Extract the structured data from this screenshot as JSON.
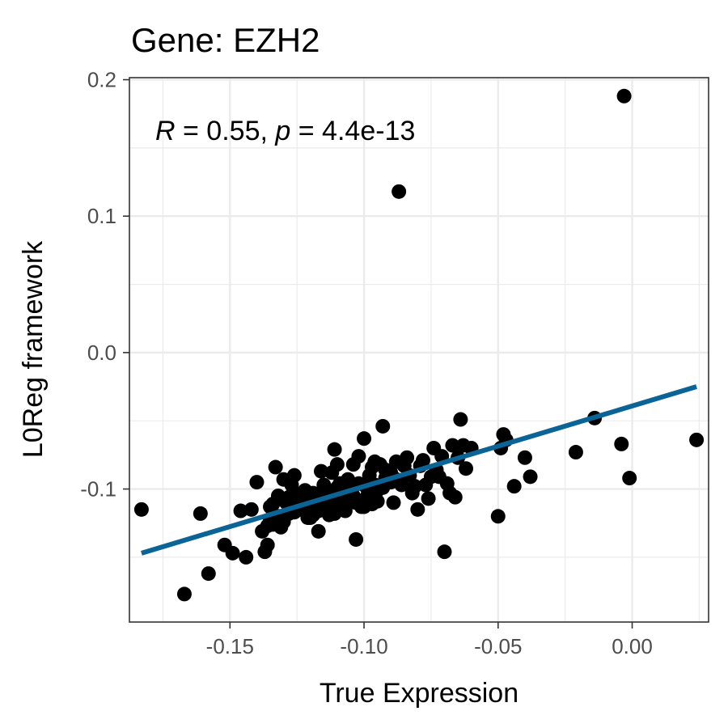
{
  "chart_data": {
    "type": "scatter",
    "title": "Gene: EZH2",
    "xlabel": "True Expression",
    "ylabel": "L0Reg framework",
    "annotation": {
      "r_symbol": "R",
      "r_text": " = 0.55, ",
      "p_symbol": "p",
      "p_text": " = 4.4e-13"
    },
    "xlim": [
      -0.1875,
      0.0285
    ],
    "ylim": [
      -0.1975,
      0.2015
    ],
    "x_ticks": [
      -0.15,
      -0.1,
      -0.05,
      0.0
    ],
    "x_tick_labels": [
      "-0.15",
      "-0.10",
      "-0.05",
      "0.00"
    ],
    "y_ticks": [
      -0.1,
      0.0,
      0.1,
      0.2
    ],
    "y_tick_labels": [
      "-0.1",
      "0.0",
      "0.1",
      "0.2"
    ],
    "grid": true,
    "regression_line": {
      "color": "#0a6496",
      "x": [
        -0.183,
        0.024
      ],
      "y": [
        -0.147,
        -0.025
      ]
    },
    "point_color": "#000000",
    "series": [
      {
        "x": [
          -0.183,
          -0.167,
          -0.161,
          -0.158,
          -0.152,
          -0.149,
          -0.146,
          -0.144,
          -0.142,
          -0.14,
          -0.138,
          -0.137,
          -0.136,
          -0.135,
          -0.134,
          -0.133,
          -0.132,
          -0.131,
          -0.13,
          -0.129,
          -0.128,
          -0.127,
          -0.126,
          -0.125,
          -0.124,
          -0.123,
          -0.122,
          -0.121,
          -0.12,
          -0.119,
          -0.118,
          -0.117,
          -0.116,
          -0.115,
          -0.114,
          -0.113,
          -0.112,
          -0.111,
          -0.11,
          -0.109,
          -0.108,
          -0.107,
          -0.106,
          -0.105,
          -0.104,
          -0.103,
          -0.102,
          -0.101,
          -0.1,
          -0.099,
          -0.098,
          -0.097,
          -0.096,
          -0.095,
          -0.094,
          -0.093,
          -0.092,
          -0.091,
          -0.09,
          -0.089,
          -0.088,
          -0.087,
          -0.086,
          -0.085,
          -0.084,
          -0.083,
          -0.082,
          -0.081,
          -0.08,
          -0.079,
          -0.078,
          -0.077,
          -0.076,
          -0.075,
          -0.074,
          -0.073,
          -0.072,
          -0.071,
          -0.07,
          -0.069,
          -0.068,
          -0.067,
          -0.066,
          -0.065,
          -0.064,
          -0.063,
          -0.062,
          -0.06,
          -0.05,
          -0.049,
          -0.048,
          -0.047,
          -0.044,
          -0.04,
          -0.038,
          -0.021,
          -0.014,
          -0.004,
          -0.003,
          -0.001,
          0.024,
          -0.088,
          -0.097,
          -0.1,
          -0.102,
          -0.105,
          -0.108,
          -0.11,
          -0.112,
          -0.114,
          -0.118,
          -0.12,
          -0.122,
          -0.124,
          -0.126,
          -0.128,
          -0.13,
          -0.132,
          -0.134,
          -0.136,
          -0.09,
          -0.093,
          -0.095,
          -0.099,
          -0.103,
          -0.107,
          -0.111,
          -0.115,
          -0.119,
          -0.123,
          -0.127,
          -0.131,
          -0.135,
          -0.092,
          -0.096,
          -0.104,
          -0.109,
          -0.113,
          -0.117,
          -0.121
        ],
        "y": [
          -0.115,
          -0.177,
          -0.118,
          -0.162,
          -0.141,
          -0.147,
          -0.116,
          -0.15,
          -0.115,
          -0.095,
          -0.131,
          -0.146,
          -0.141,
          -0.113,
          -0.126,
          -0.084,
          -0.105,
          -0.128,
          -0.093,
          -0.11,
          -0.118,
          -0.097,
          -0.09,
          -0.104,
          -0.115,
          -0.107,
          -0.101,
          -0.121,
          -0.113,
          -0.103,
          -0.108,
          -0.131,
          -0.087,
          -0.097,
          -0.106,
          -0.119,
          -0.088,
          -0.071,
          -0.082,
          -0.096,
          -0.109,
          -0.116,
          -0.093,
          -0.1,
          -0.082,
          -0.137,
          -0.076,
          -0.113,
          -0.063,
          -0.099,
          -0.09,
          -0.084,
          -0.08,
          -0.109,
          -0.082,
          -0.054,
          -0.086,
          -0.094,
          -0.088,
          -0.11,
          -0.08,
          0.118,
          -0.097,
          -0.083,
          -0.077,
          -0.09,
          -0.103,
          -0.098,
          -0.115,
          -0.083,
          -0.079,
          -0.097,
          -0.107,
          -0.091,
          -0.07,
          -0.086,
          -0.091,
          -0.076,
          -0.146,
          -0.096,
          -0.103,
          -0.068,
          -0.106,
          -0.077,
          -0.049,
          -0.068,
          -0.085,
          -0.07,
          -0.12,
          -0.07,
          -0.06,
          -0.064,
          -0.098,
          -0.077,
          -0.091,
          -0.073,
          -0.048,
          -0.067,
          0.188,
          -0.092,
          -0.064,
          -0.093,
          -0.111,
          -0.113,
          -0.096,
          -0.108,
          -0.103,
          -0.099,
          -0.114,
          -0.102,
          -0.112,
          -0.121,
          -0.104,
          -0.11,
          -0.117,
          -0.106,
          -0.124,
          -0.12,
          -0.111,
          -0.127,
          -0.095,
          -0.099,
          -0.101,
          -0.106,
          -0.11,
          -0.114,
          -0.118,
          -0.111,
          -0.119,
          -0.113,
          -0.116,
          -0.12,
          -0.122,
          -0.092,
          -0.097,
          -0.105,
          -0.108,
          -0.112,
          -0.116,
          -0.117
        ]
      }
    ]
  }
}
